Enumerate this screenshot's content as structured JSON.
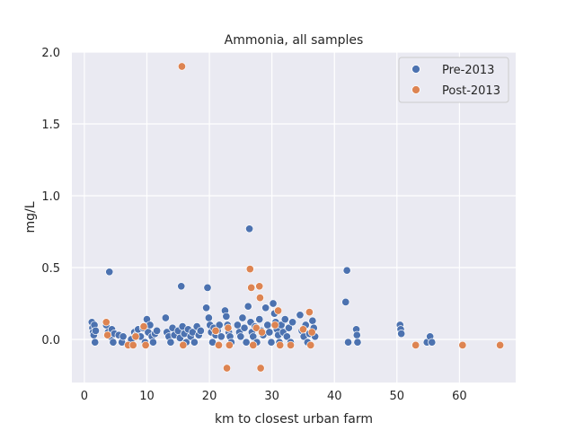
{
  "chart_data": {
    "type": "scatter",
    "title": "Ammonia, all samples",
    "xlabel": "km to closest urban farm",
    "ylabel": "mg/L",
    "xlim": [
      -2,
      69
    ],
    "ylim": [
      -0.3,
      2.0
    ],
    "xticks": [
      0,
      10,
      20,
      30,
      40,
      50,
      60
    ],
    "yticks": [
      0.0,
      0.5,
      1.0,
      1.5,
      2.0
    ],
    "ytick_labels": [
      "0.0",
      "0.5",
      "1.0",
      "1.5",
      "2.0"
    ],
    "grid": true,
    "legend_position": "top-right",
    "colors": {
      "background": "#eaeaf2",
      "grid": "#ffffff",
      "pre": "#4c72b0",
      "post": "#dd8452"
    },
    "series": [
      {
        "name": "Pre-2013",
        "color": "#4c72b0",
        "points": [
          [
            1.2,
            0.12
          ],
          [
            1.3,
            0.08
          ],
          [
            1.4,
            0.05
          ],
          [
            1.5,
            0.03
          ],
          [
            1.6,
            0.1
          ],
          [
            1.7,
            -0.02
          ],
          [
            1.8,
            0.06
          ],
          [
            3.5,
            0.1
          ],
          [
            3.8,
            0.05
          ],
          [
            4.0,
            0.47
          ],
          [
            4.2,
            0.02
          ],
          [
            4.4,
            0.07
          ],
          [
            4.6,
            -0.02
          ],
          [
            4.8,
            0.04
          ],
          [
            5.5,
            0.03
          ],
          [
            6.0,
            -0.02
          ],
          [
            6.2,
            0.02
          ],
          [
            7.5,
            0.0
          ],
          [
            8.0,
            0.05
          ],
          [
            8.3,
            0.03
          ],
          [
            8.6,
            0.07
          ],
          [
            9.0,
            0.02
          ],
          [
            9.4,
            0.08
          ],
          [
            9.7,
            -0.02
          ],
          [
            10.0,
            0.14
          ],
          [
            10.2,
            0.05
          ],
          [
            10.5,
            0.1
          ],
          [
            10.8,
            0.02
          ],
          [
            11.0,
            -0.02
          ],
          [
            11.3,
            0.04
          ],
          [
            11.6,
            0.06
          ],
          [
            13.0,
            0.15
          ],
          [
            13.2,
            0.05
          ],
          [
            13.5,
            0.02
          ],
          [
            13.8,
            -0.02
          ],
          [
            14.1,
            0.08
          ],
          [
            14.4,
            0.03
          ],
          [
            15.0,
            0.06
          ],
          [
            15.3,
            0.01
          ],
          [
            15.5,
            0.37
          ],
          [
            15.7,
            0.09
          ],
          [
            16.0,
            0.04
          ],
          [
            16.3,
            -0.02
          ],
          [
            16.6,
            0.07
          ],
          [
            17.0,
            0.02
          ],
          [
            17.3,
            0.05
          ],
          [
            17.6,
            -0.02
          ],
          [
            18.0,
            0.09
          ],
          [
            18.3,
            0.03
          ],
          [
            18.6,
            0.06
          ],
          [
            19.5,
            0.22
          ],
          [
            19.7,
            0.36
          ],
          [
            19.9,
            0.15
          ],
          [
            20.1,
            0.1
          ],
          [
            20.3,
            0.05
          ],
          [
            20.5,
            -0.02
          ],
          [
            20.7,
            0.08
          ],
          [
            21.0,
            0.03
          ],
          [
            21.3,
            0.06
          ],
          [
            21.6,
            0.1
          ],
          [
            21.9,
            0.02
          ],
          [
            22.5,
            0.2
          ],
          [
            22.7,
            0.16
          ],
          [
            22.9,
            0.1
          ],
          [
            23.1,
            0.05
          ],
          [
            23.3,
            0.02
          ],
          [
            23.5,
            -0.02
          ],
          [
            24.5,
            0.1
          ],
          [
            24.8,
            0.05
          ],
          [
            25.0,
            0.02
          ],
          [
            25.3,
            0.15
          ],
          [
            25.6,
            0.08
          ],
          [
            25.9,
            -0.02
          ],
          [
            26.2,
            0.23
          ],
          [
            26.4,
            0.77
          ],
          [
            26.6,
            0.12
          ],
          [
            26.8,
            0.05
          ],
          [
            27.0,
            0.02
          ],
          [
            27.3,
            0.09
          ],
          [
            27.6,
            -0.02
          ],
          [
            28.0,
            0.14
          ],
          [
            28.3,
            0.06
          ],
          [
            28.6,
            0.03
          ],
          [
            29.0,
            0.22
          ],
          [
            29.3,
            0.1
          ],
          [
            29.6,
            0.05
          ],
          [
            29.9,
            -0.02
          ],
          [
            30.2,
            0.25
          ],
          [
            30.4,
            0.18
          ],
          [
            30.6,
            0.12
          ],
          [
            30.8,
            0.07
          ],
          [
            31.0,
            0.03
          ],
          [
            31.2,
            -0.02
          ],
          [
            31.5,
            0.1
          ],
          [
            31.8,
            0.05
          ],
          [
            32.1,
            0.14
          ],
          [
            32.4,
            0.02
          ],
          [
            32.7,
            0.08
          ],
          [
            33.0,
            -0.02
          ],
          [
            33.3,
            0.12
          ],
          [
            34.5,
            0.17
          ],
          [
            34.8,
            0.06
          ],
          [
            35.1,
            0.02
          ],
          [
            35.4,
            0.1
          ],
          [
            35.7,
            -0.02
          ],
          [
            36.0,
            0.04
          ],
          [
            36.5,
            0.13
          ],
          [
            36.7,
            0.08
          ],
          [
            36.9,
            0.02
          ],
          [
            41.8,
            0.26
          ],
          [
            42.0,
            0.48
          ],
          [
            42.2,
            -0.02
          ],
          [
            43.5,
            0.07
          ],
          [
            43.6,
            0.03
          ],
          [
            43.7,
            -0.02
          ],
          [
            50.5,
            0.1
          ],
          [
            50.6,
            0.07
          ],
          [
            50.7,
            0.04
          ],
          [
            54.8,
            -0.02
          ],
          [
            55.3,
            0.02
          ],
          [
            55.6,
            -0.02
          ]
        ]
      },
      {
        "name": "Post-2013",
        "color": "#dd8452",
        "points": [
          [
            3.5,
            0.12
          ],
          [
            3.7,
            0.03
          ],
          [
            7.0,
            -0.04
          ],
          [
            7.8,
            -0.04
          ],
          [
            8.2,
            0.02
          ],
          [
            9.5,
            0.09
          ],
          [
            9.8,
            -0.04
          ],
          [
            15.6,
            1.9
          ],
          [
            15.8,
            -0.04
          ],
          [
            21.0,
            0.06
          ],
          [
            21.5,
            -0.04
          ],
          [
            22.8,
            -0.2
          ],
          [
            23.0,
            0.08
          ],
          [
            23.2,
            -0.04
          ],
          [
            26.5,
            0.49
          ],
          [
            26.7,
            0.36
          ],
          [
            27.0,
            -0.04
          ],
          [
            27.5,
            0.08
          ],
          [
            28.0,
            0.37
          ],
          [
            28.1,
            0.29
          ],
          [
            28.2,
            -0.2
          ],
          [
            28.4,
            0.05
          ],
          [
            30.5,
            0.1
          ],
          [
            31.0,
            0.2
          ],
          [
            31.3,
            -0.04
          ],
          [
            33.0,
            -0.04
          ],
          [
            35.0,
            0.07
          ],
          [
            36.0,
            0.19
          ],
          [
            36.2,
            -0.04
          ],
          [
            36.4,
            0.05
          ],
          [
            53.0,
            -0.04
          ],
          [
            60.5,
            -0.04
          ],
          [
            66.5,
            -0.04
          ]
        ]
      }
    ]
  }
}
